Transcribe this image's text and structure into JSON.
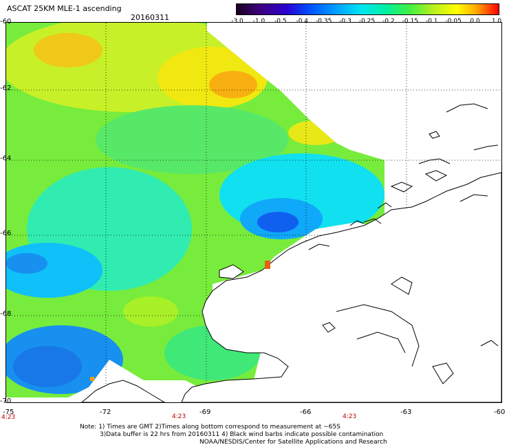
{
  "header": {
    "title": "ASCAT 25KM MLE-1 ascending",
    "date": "20160311"
  },
  "colorbar": {
    "labels": [
      "-3.0",
      "-1.0",
      "-0.5",
      "-0.4",
      "-0.35",
      "-0.3",
      "-0.25",
      "-0.2",
      "-0.15",
      "-0.1",
      "-0.05",
      "0.0",
      "1.0"
    ],
    "colors": {
      "low": "#1a0020",
      "mid": "#00e8f0",
      "high": "#ff0000"
    }
  },
  "map": {
    "lat_labels": [
      "-60",
      "-62",
      "-64",
      "-66",
      "-68",
      "-70"
    ],
    "lon_labels": [
      "-75",
      "-72",
      "-69",
      "-66",
      "-63",
      "-60"
    ],
    "time_labels": [
      "4:23",
      "4:23",
      "4:23"
    ],
    "colors": {
      "coast": "#000000",
      "grid": "#000000"
    }
  },
  "notes": {
    "line1": "Note: 1) Times are GMT 2)Times along bottom correspond to measurement at ~65S",
    "line2": "3)Data buffer is 22 hrs from 20160311 4) Black wind barbs indicate possible contamination",
    "line3": "NOAA/NESDIS/Center for Satellite Applications and Research"
  }
}
